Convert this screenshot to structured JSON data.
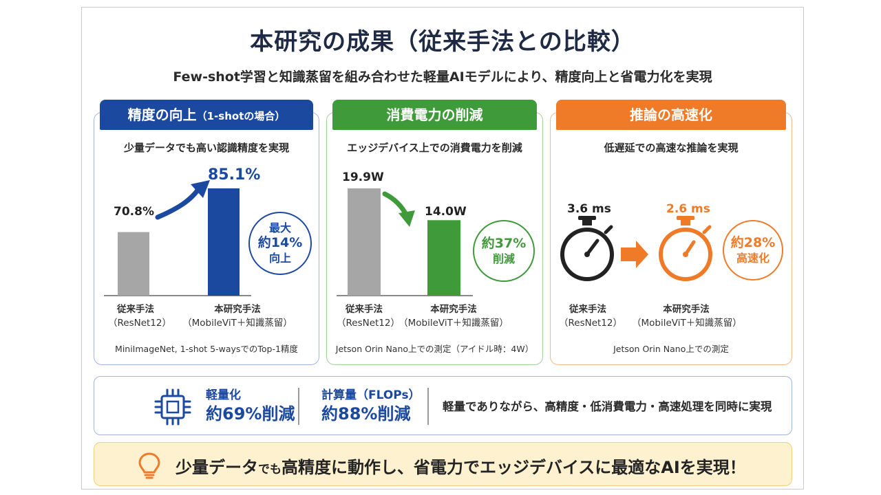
{
  "title": "本研究の成果（従来手法との比較）",
  "subtitle": "Few-shot学習と知識蒸留を組み合わせた軽量AIモデルにより、精度向上と省電力化を実現",
  "panels": {
    "accuracy": {
      "head": "精度の向上",
      "head_note": "（1-shotの場合）",
      "desc": "少量データでも高い認識精度を実現",
      "footnote": "MiniImageNet, 1-shot 5-waysでのTop-1精度",
      "color": "#1c49a0",
      "badge": [
        "最大",
        "約14%",
        "向上"
      ]
    },
    "power": {
      "head": "消費電力の削減",
      "desc": "エッジデバイス上での消費電力を削減",
      "footnote": "Jetson Orin Nano上での測定（アイドル時：4W）",
      "color": "#3f9a3a",
      "badge": [
        "約37%",
        "削減"
      ]
    },
    "speed": {
      "head": "推論の高速化",
      "desc": "低遅延での高速な推論を実現",
      "footnote": "Jetson Orin Nano上での測定",
      "color": "#ef7a27",
      "badge": [
        "約28%",
        "高速化"
      ]
    }
  },
  "categories": {
    "baseline_name": "従来手法",
    "baseline_model": "（ResNet12）",
    "proposed_name": "本研究手法",
    "proposed_model": "（MobileViT＋知識蒸留）"
  },
  "chart_data": [
    {
      "type": "bar",
      "title": "精度の向上（1-shotの場合）",
      "categories": [
        "従来手法（ResNet12）",
        "本研究手法（MobileViT＋知識蒸留）"
      ],
      "values": [
        70.8,
        85.1
      ],
      "labels": [
        "70.8%",
        "85.1%"
      ],
      "unit": "%",
      "colors": [
        "#a6a6a6",
        "#1c49a0"
      ]
    },
    {
      "type": "bar",
      "title": "消費電力の削減",
      "categories": [
        "従来手法（ResNet12）",
        "本研究手法（MobileViT＋知識蒸留）"
      ],
      "values": [
        19.9,
        14.0
      ],
      "labels": [
        "19.9W",
        "14.0W"
      ],
      "unit": "W",
      "colors": [
        "#a6a6a6",
        "#3f9a3a"
      ]
    },
    {
      "type": "table",
      "title": "推論の高速化",
      "categories": [
        "従来手法（ResNet12）",
        "本研究手法（MobileViT＋知識蒸留）"
      ],
      "values": [
        3.6,
        2.6
      ],
      "labels": [
        "3.6 ms",
        "2.6 ms"
      ],
      "unit": "ms",
      "colors": [
        "#333333",
        "#ef7a27"
      ]
    }
  ],
  "metrics": {
    "lightweight_label": "軽量化",
    "lightweight_value": "約69%削減",
    "flops_label": "計算量（FLOPs）",
    "flops_value": "約88%削減",
    "summary": "軽量でありながら、高精度・低消費電力・高速処理を同時に実現"
  },
  "banner": {
    "text_a": "少量データ",
    "text_b": "でも",
    "text_c": "高精度に動作し、省電力でエッジデバイスに最適なAIを実現！"
  },
  "icons": [
    "cpu-chip-icon",
    "lightbulb-icon",
    "stopwatch-icon",
    "arrow-icon"
  ]
}
